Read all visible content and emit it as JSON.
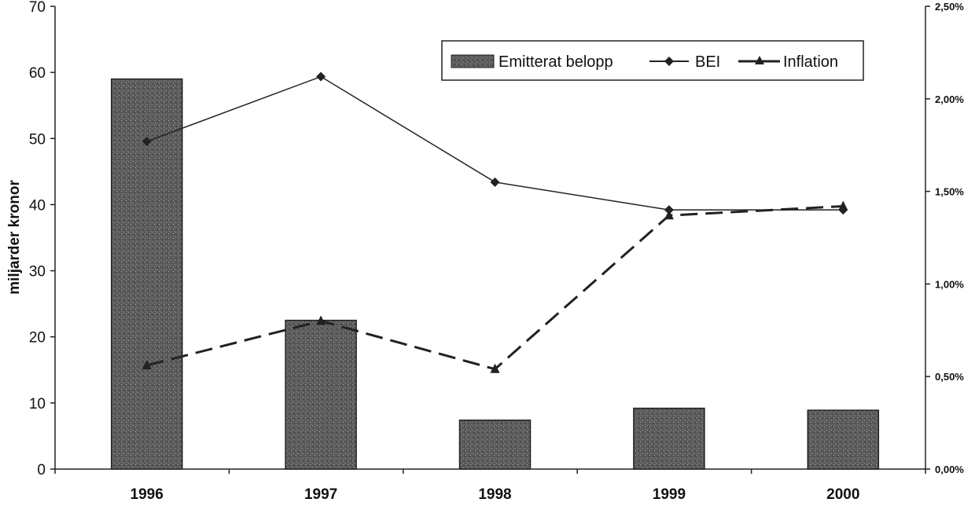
{
  "chart_data": {
    "type": "bar+line",
    "categories": [
      "1996",
      "1997",
      "1998",
      "1999",
      "2000"
    ],
    "ylabel": "miljarder kronor",
    "ylim": [
      0,
      70
    ],
    "yticks": [
      "0",
      "10",
      "20",
      "30",
      "40",
      "50",
      "60",
      "70"
    ],
    "y2lim": [
      0,
      2.5
    ],
    "y2ticks": [
      "0,00%",
      "0,50%",
      "1,00%",
      "1,50%",
      "2,00%",
      "2,50%"
    ],
    "legend_position": "top-right",
    "grid": false,
    "series": [
      {
        "name": "Emitterat belopp",
        "type": "bar",
        "axis": "left",
        "color": "#555555",
        "values": [
          59.0,
          22.5,
          7.4,
          9.2,
          8.9
        ]
      },
      {
        "name": "BEI",
        "type": "line",
        "axis": "right",
        "marker": "diamond",
        "style": "solid",
        "color": "#222222",
        "values": [
          1.77,
          2.12,
          1.55,
          1.4,
          1.4
        ]
      },
      {
        "name": "Inflation",
        "type": "line",
        "axis": "right",
        "marker": "triangle",
        "style": "dashed",
        "color": "#222222",
        "values": [
          0.56,
          0.8,
          0.54,
          1.37,
          1.42
        ]
      }
    ]
  }
}
